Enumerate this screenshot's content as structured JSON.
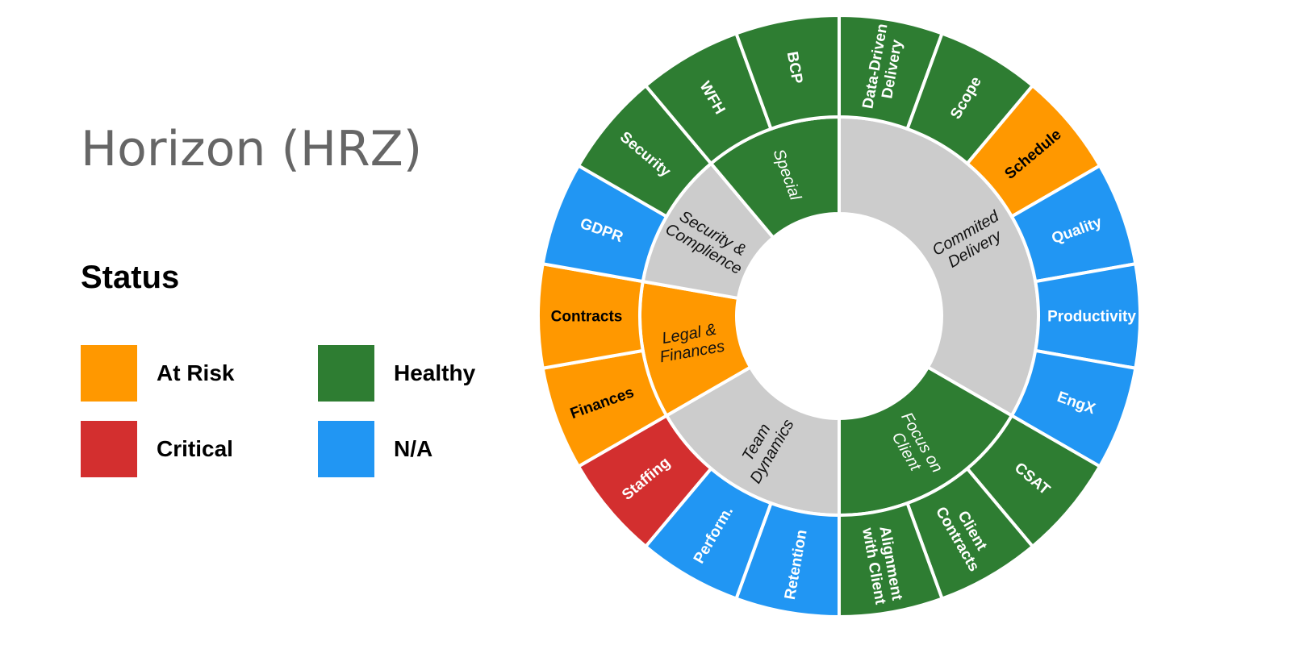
{
  "title": "Horizon (HRZ)",
  "legend": {
    "title": "Status",
    "items": [
      {
        "key": "at_risk",
        "label": "At Risk"
      },
      {
        "key": "critical",
        "label": "Critical"
      },
      {
        "key": "healthy",
        "label": "Healthy"
      },
      {
        "key": "na",
        "label": "N/A"
      }
    ]
  },
  "status_colors": {
    "at_risk": "#FF9800",
    "critical": "#D32F2F",
    "healthy": "#2E7D32",
    "na": "#2196F3",
    "neutral": "#CCCCCC"
  },
  "chart_data": {
    "type": "sunburst",
    "inner": [
      {
        "label": "Commited\nDelivery",
        "status": "neutral",
        "children": [
          {
            "label": "Data-Driven\nDelivery",
            "status": "healthy"
          },
          {
            "label": "Scope",
            "status": "healthy"
          },
          {
            "label": "Schedule",
            "status": "at_risk"
          },
          {
            "label": "Quality",
            "status": "na"
          },
          {
            "label": "Productivity",
            "status": "na"
          },
          {
            "label": "EngX",
            "status": "na"
          }
        ]
      },
      {
        "label": "Focus on\nClient",
        "status": "healthy",
        "children": [
          {
            "label": "CSAT",
            "status": "healthy"
          },
          {
            "label": "Client\nContracts",
            "status": "healthy"
          },
          {
            "label": "Alignment\nwith Client",
            "status": "healthy"
          }
        ]
      },
      {
        "label": "Team\nDynamics",
        "status": "neutral",
        "children": [
          {
            "label": "Retention",
            "status": "na"
          },
          {
            "label": "Perform.",
            "status": "na"
          },
          {
            "label": "Staffing",
            "status": "critical"
          }
        ]
      },
      {
        "label": "Legal &\nFinances",
        "status": "at_risk",
        "children": [
          {
            "label": "Finances",
            "status": "at_risk"
          },
          {
            "label": "Contracts",
            "status": "at_risk"
          }
        ]
      },
      {
        "label": "Security &\nComplience",
        "status": "neutral",
        "children": [
          {
            "label": "GDPR",
            "status": "na"
          },
          {
            "label": "Security",
            "status": "healthy"
          }
        ]
      },
      {
        "label": "Special",
        "status": "healthy",
        "children": [
          {
            "label": "WFH",
            "status": "healthy"
          },
          {
            "label": "BCP",
            "status": "healthy"
          }
        ]
      }
    ]
  }
}
